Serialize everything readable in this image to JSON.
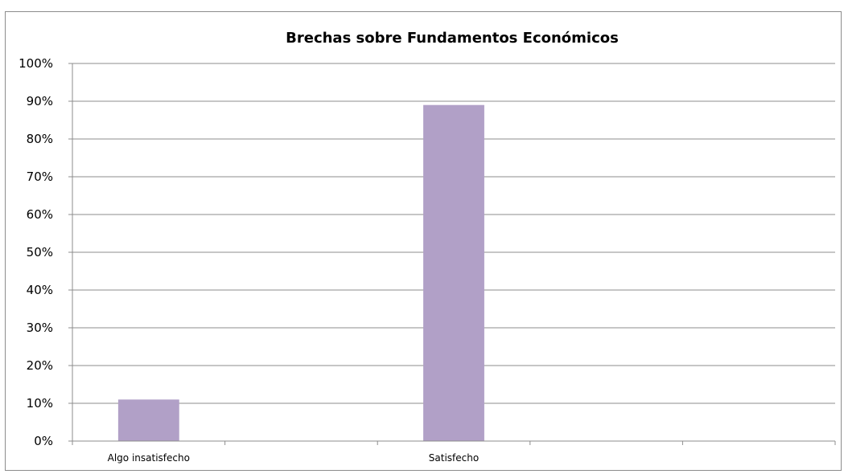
{
  "chart_data": {
    "type": "bar",
    "title": "Brechas sobre Fundamentos Económicos",
    "xlabel": "",
    "ylabel": "",
    "categories": [
      "Algo insatisfecho",
      "",
      "Satisfecho",
      "",
      ""
    ],
    "values": [
      11,
      null,
      89,
      null,
      null
    ],
    "yticks": [
      "0%",
      "10%",
      "20%",
      "30%",
      "40%",
      "50%",
      "60%",
      "70%",
      "80%",
      "90%",
      "100%"
    ],
    "ylim": [
      0,
      100
    ],
    "grid": true,
    "legend": "none",
    "colors": {
      "bar": "#b1a0c7",
      "gridline": "#8c8c8c",
      "axis": "#8c8c8c"
    }
  }
}
